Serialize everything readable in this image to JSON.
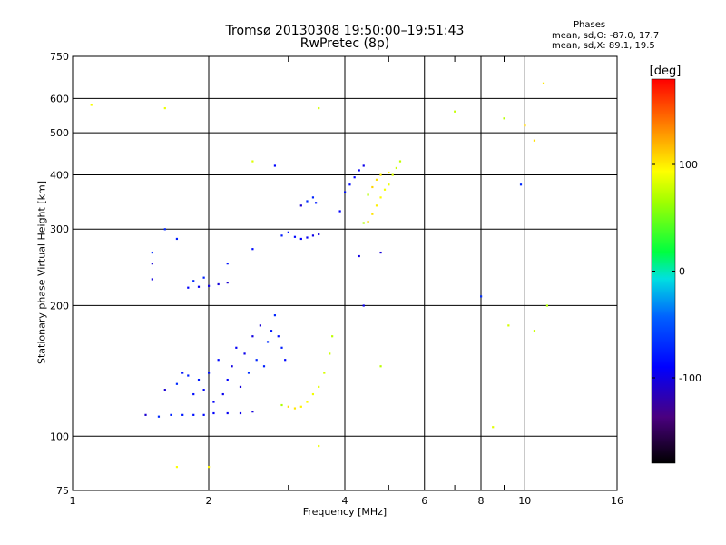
{
  "title_line1": "Tromsø 20130308 19:50:00–19:51:43",
  "title_line2": "RwPretec (8p)",
  "stats": {
    "heading": "Phases",
    "line_o": "mean, sd,O: -87.0, 17.7",
    "line_x": "mean, sd,X: 89.1, 19.5"
  },
  "chart_data": {
    "type": "scatter",
    "title": "Tromsø 20130308 19:50:00–19:51:43",
    "subtitle": "RwPretec (8p)",
    "xlabel": "Frequency [MHz]",
    "ylabel": "Stationary phase Virtual Height [km]",
    "x_scale": "log",
    "y_scale": "log",
    "xlim": [
      1,
      16
    ],
    "ylim": [
      75,
      750
    ],
    "x_ticks": [
      1,
      2,
      4,
      6,
      8,
      10,
      16
    ],
    "x_tick_labels": [
      "1",
      "2",
      "4",
      "6",
      "8",
      "10",
      "16"
    ],
    "x_minor_ticks": [
      3,
      5,
      7,
      9
    ],
    "y_ticks": [
      75,
      100,
      200,
      300,
      400,
      500,
      600,
      750
    ],
    "y_tick_labels": [
      "75",
      "100",
      "200",
      "300",
      "400",
      "500",
      "600",
      "750"
    ],
    "grid": true,
    "colorbar": {
      "label": "[deg]",
      "range": [
        -180,
        180
      ],
      "ticks": [
        100,
        0,
        -100
      ],
      "tick_labels": [
        "100",
        "0",
        "-100"
      ]
    },
    "series": [
      {
        "name": "O",
        "points": [
          [
            1.45,
            112
          ],
          [
            1.55,
            111
          ],
          [
            1.65,
            112
          ],
          [
            1.75,
            112
          ],
          [
            1.85,
            112
          ],
          [
            1.95,
            112
          ],
          [
            2.05,
            113
          ],
          [
            2.2,
            113
          ],
          [
            2.35,
            113
          ],
          [
            2.5,
            114
          ],
          [
            1.6,
            128
          ],
          [
            1.7,
            132
          ],
          [
            1.8,
            138
          ],
          [
            1.9,
            135
          ],
          [
            2.0,
            140
          ],
          [
            2.1,
            150
          ],
          [
            2.2,
            135
          ],
          [
            2.3,
            160
          ],
          [
            2.4,
            155
          ],
          [
            2.5,
            170
          ],
          [
            2.6,
            180
          ],
          [
            2.7,
            165
          ],
          [
            2.8,
            190
          ],
          [
            2.9,
            160
          ],
          [
            1.75,
            140
          ],
          [
            1.85,
            125
          ],
          [
            1.95,
            128
          ],
          [
            2.05,
            120
          ],
          [
            2.15,
            125
          ],
          [
            2.25,
            145
          ],
          [
            2.35,
            130
          ],
          [
            2.45,
            140
          ],
          [
            2.55,
            150
          ],
          [
            2.65,
            145
          ],
          [
            2.75,
            175
          ],
          [
            2.85,
            170
          ],
          [
            2.95,
            150
          ],
          [
            1.8,
            220
          ],
          [
            1.9,
            221
          ],
          [
            2.0,
            222
          ],
          [
            2.1,
            224
          ],
          [
            2.2,
            226
          ],
          [
            1.85,
            228
          ],
          [
            1.95,
            232
          ],
          [
            2.9,
            290
          ],
          [
            3.0,
            295
          ],
          [
            3.1,
            288
          ],
          [
            3.2,
            285
          ],
          [
            3.3,
            287
          ],
          [
            3.4,
            290
          ],
          [
            3.5,
            292
          ],
          [
            3.2,
            340
          ],
          [
            3.3,
            348
          ],
          [
            3.4,
            355
          ],
          [
            3.45,
            345
          ],
          [
            4.0,
            365
          ],
          [
            4.1,
            380
          ],
          [
            4.2,
            395
          ],
          [
            4.3,
            410
          ],
          [
            4.4,
            420
          ],
          [
            1.5,
            230
          ],
          [
            1.5,
            250
          ],
          [
            1.5,
            265
          ],
          [
            1.6,
            300
          ],
          [
            1.7,
            285
          ],
          [
            2.2,
            250
          ],
          [
            2.5,
            270
          ],
          [
            2.8,
            420
          ],
          [
            3.9,
            330
          ],
          [
            4.4,
            200
          ],
          [
            4.3,
            260
          ],
          [
            4.8,
            265
          ],
          [
            8.0,
            210
          ],
          [
            9.8,
            380
          ]
        ]
      },
      {
        "name": "X",
        "points": [
          [
            2.9,
            118
          ],
          [
            3.0,
            117
          ],
          [
            3.1,
            116
          ],
          [
            3.2,
            117
          ],
          [
            3.3,
            120
          ],
          [
            3.4,
            125
          ],
          [
            3.5,
            130
          ],
          [
            3.6,
            140
          ],
          [
            3.7,
            155
          ],
          [
            3.75,
            170
          ],
          [
            4.4,
            310
          ],
          [
            4.5,
            312
          ],
          [
            4.6,
            325
          ],
          [
            4.7,
            340
          ],
          [
            4.8,
            355
          ],
          [
            4.9,
            370
          ],
          [
            5.0,
            380
          ],
          [
            5.1,
            400
          ],
          [
            5.2,
            415
          ],
          [
            5.3,
            430
          ],
          [
            4.5,
            360
          ],
          [
            4.6,
            375
          ],
          [
            4.7,
            390
          ],
          [
            4.8,
            400
          ],
          [
            5.0,
            405
          ],
          [
            1.1,
            580
          ],
          [
            1.6,
            570
          ],
          [
            2.5,
            430
          ],
          [
            3.5,
            570
          ],
          [
            7.0,
            560
          ],
          [
            9.0,
            540
          ],
          [
            10.0,
            520
          ],
          [
            10.5,
            480
          ],
          [
            11.0,
            650
          ],
          [
            2.0,
            85
          ],
          [
            1.7,
            85
          ],
          [
            3.5,
            95
          ],
          [
            8.5,
            105
          ],
          [
            9.2,
            180
          ],
          [
            10.5,
            175
          ],
          [
            4.8,
            145
          ],
          [
            11.2,
            200
          ]
        ]
      }
    ]
  }
}
